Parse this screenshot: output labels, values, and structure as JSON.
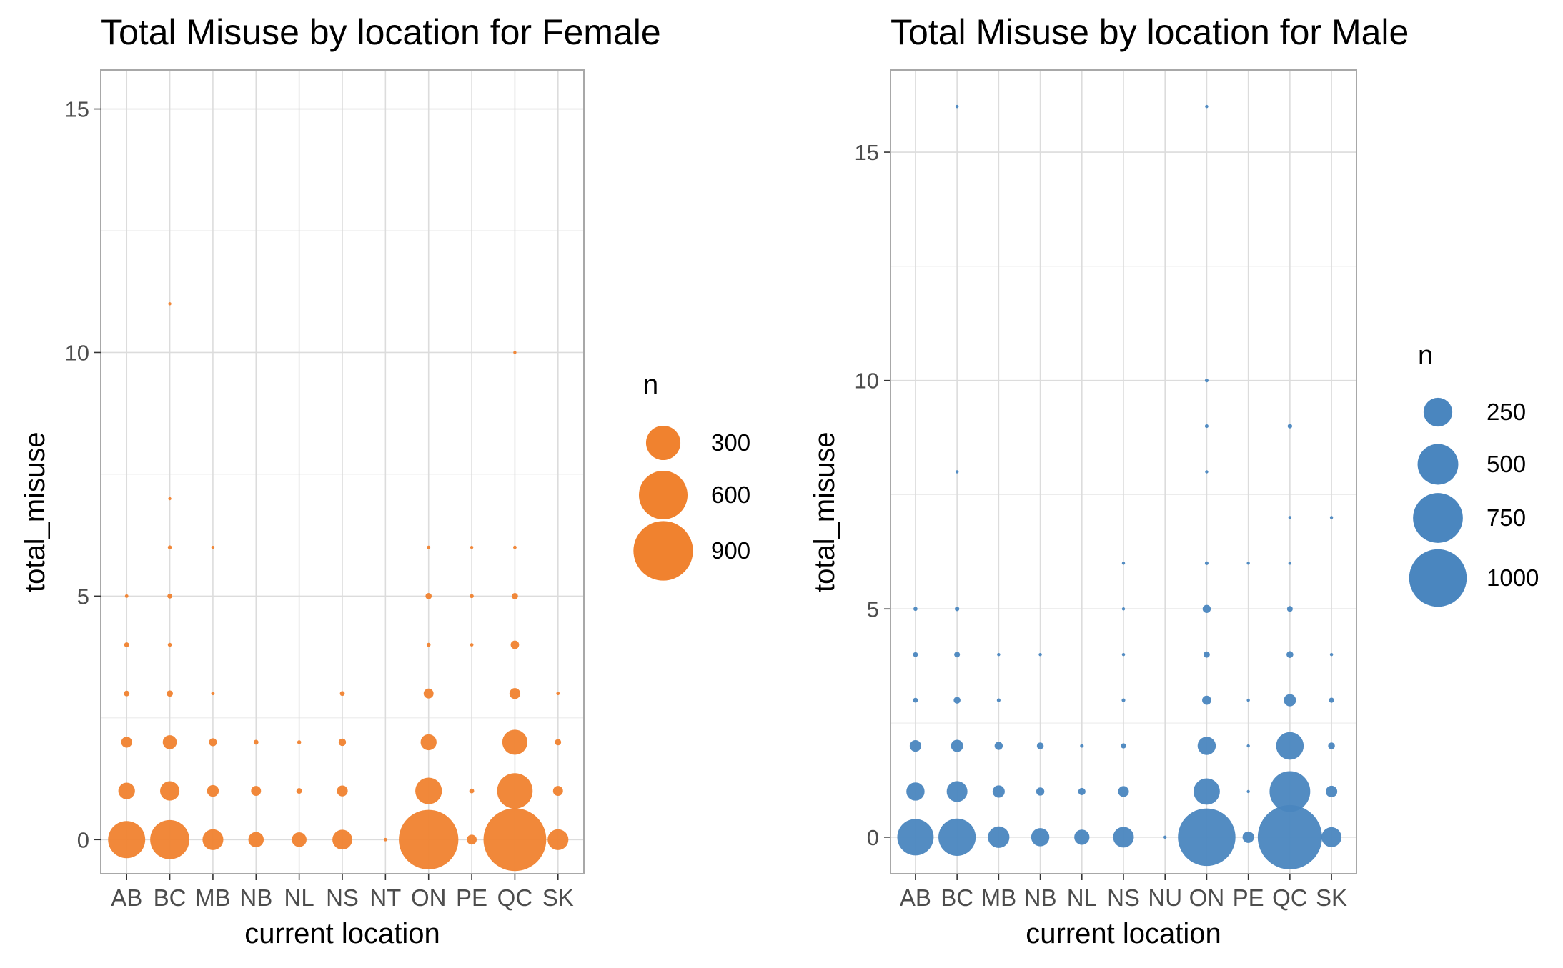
{
  "chart_data": [
    {
      "type": "scatter",
      "title": "Total Misuse by location for Female",
      "xlabel": "current location",
      "ylabel": "total_misuse",
      "categories": [
        "AB",
        "BC",
        "MB",
        "NB",
        "NL",
        "NS",
        "NT",
        "ON",
        "PE",
        "QC",
        "SK"
      ],
      "yticks": [
        0,
        5,
        10,
        15
      ],
      "ylim": [
        -0.7,
        15.8
      ],
      "grid": true,
      "color": "#F0822F",
      "legend": {
        "title": "n",
        "placement": "right",
        "values": [
          300,
          600,
          900
        ],
        "labels": [
          "300",
          "600",
          "900"
        ]
      },
      "size_max": 1050,
      "points": [
        {
          "x": "AB",
          "y": 0,
          "n": 350
        },
        {
          "x": "AB",
          "y": 1,
          "n": 70
        },
        {
          "x": "AB",
          "y": 2,
          "n": 30
        },
        {
          "x": "AB",
          "y": 3,
          "n": 8
        },
        {
          "x": "AB",
          "y": 4,
          "n": 6
        },
        {
          "x": "AB",
          "y": 5,
          "n": 3
        },
        {
          "x": "BC",
          "y": 0,
          "n": 390
        },
        {
          "x": "BC",
          "y": 1,
          "n": 95
        },
        {
          "x": "BC",
          "y": 2,
          "n": 50
        },
        {
          "x": "BC",
          "y": 3,
          "n": 10
        },
        {
          "x": "BC",
          "y": 4,
          "n": 4
        },
        {
          "x": "BC",
          "y": 5,
          "n": 6
        },
        {
          "x": "BC",
          "y": 6,
          "n": 4
        },
        {
          "x": "BC",
          "y": 7,
          "n": 2
        },
        {
          "x": "BC",
          "y": 11,
          "n": 2
        },
        {
          "x": "MB",
          "y": 0,
          "n": 110
        },
        {
          "x": "MB",
          "y": 1,
          "n": 35
        },
        {
          "x": "MB",
          "y": 2,
          "n": 16
        },
        {
          "x": "MB",
          "y": 3,
          "n": 3
        },
        {
          "x": "MB",
          "y": 6,
          "n": 2
        },
        {
          "x": "NB",
          "y": 0,
          "n": 60
        },
        {
          "x": "NB",
          "y": 1,
          "n": 25
        },
        {
          "x": "NB",
          "y": 2,
          "n": 6
        },
        {
          "x": "NL",
          "y": 0,
          "n": 55
        },
        {
          "x": "NL",
          "y": 1,
          "n": 8
        },
        {
          "x": "NL",
          "y": 2,
          "n": 4
        },
        {
          "x": "NS",
          "y": 0,
          "n": 100
        },
        {
          "x": "NS",
          "y": 1,
          "n": 30
        },
        {
          "x": "NS",
          "y": 2,
          "n": 14
        },
        {
          "x": "NS",
          "y": 3,
          "n": 6
        },
        {
          "x": "NT",
          "y": 0,
          "n": 3
        },
        {
          "x": "ON",
          "y": 0,
          "n": 900
        },
        {
          "x": "ON",
          "y": 1,
          "n": 180
        },
        {
          "x": "ON",
          "y": 2,
          "n": 65
        },
        {
          "x": "ON",
          "y": 3,
          "n": 25
        },
        {
          "x": "ON",
          "y": 4,
          "n": 4
        },
        {
          "x": "ON",
          "y": 5,
          "n": 10
        },
        {
          "x": "ON",
          "y": 6,
          "n": 3
        },
        {
          "x": "PE",
          "y": 0,
          "n": 25
        },
        {
          "x": "PE",
          "y": 1,
          "n": 6
        },
        {
          "x": "PE",
          "y": 4,
          "n": 3
        },
        {
          "x": "PE",
          "y": 5,
          "n": 4
        },
        {
          "x": "PE",
          "y": 6,
          "n": 2
        },
        {
          "x": "QC",
          "y": 0,
          "n": 1000
        },
        {
          "x": "QC",
          "y": 1,
          "n": 320
        },
        {
          "x": "QC",
          "y": 2,
          "n": 160
        },
        {
          "x": "QC",
          "y": 3,
          "n": 30
        },
        {
          "x": "QC",
          "y": 4,
          "n": 18
        },
        {
          "x": "QC",
          "y": 5,
          "n": 10
        },
        {
          "x": "QC",
          "y": 6,
          "n": 3
        },
        {
          "x": "QC",
          "y": 10,
          "n": 2
        },
        {
          "x": "SK",
          "y": 0,
          "n": 110
        },
        {
          "x": "SK",
          "y": 1,
          "n": 25
        },
        {
          "x": "SK",
          "y": 2,
          "n": 10
        },
        {
          "x": "SK",
          "y": 3,
          "n": 3
        }
      ]
    },
    {
      "type": "scatter",
      "title": "Total Misuse by location for Male",
      "xlabel": "current location",
      "ylabel": "total_misuse",
      "categories": [
        "AB",
        "BC",
        "MB",
        "NB",
        "NL",
        "NS",
        "NU",
        "ON",
        "PE",
        "QC",
        "SK"
      ],
      "yticks": [
        0,
        5,
        10,
        15
      ],
      "ylim": [
        -0.8,
        16.8
      ],
      "grid": true,
      "color": "#4A86BF",
      "legend": {
        "title": "n",
        "placement": "right",
        "values": [
          250,
          500,
          750,
          1000
        ],
        "labels": [
          "250",
          "500",
          "750",
          "1000"
        ]
      },
      "size_max": 1250,
      "points": [
        {
          "x": "AB",
          "y": 0,
          "n": 400
        },
        {
          "x": "AB",
          "y": 1,
          "n": 100
        },
        {
          "x": "AB",
          "y": 2,
          "n": 40
        },
        {
          "x": "AB",
          "y": 3,
          "n": 7
        },
        {
          "x": "AB",
          "y": 4,
          "n": 7
        },
        {
          "x": "AB",
          "y": 5,
          "n": 5
        },
        {
          "x": "BC",
          "y": 0,
          "n": 420
        },
        {
          "x": "BC",
          "y": 1,
          "n": 130
        },
        {
          "x": "BC",
          "y": 2,
          "n": 45
        },
        {
          "x": "BC",
          "y": 3,
          "n": 14
        },
        {
          "x": "BC",
          "y": 4,
          "n": 10
        },
        {
          "x": "BC",
          "y": 5,
          "n": 6
        },
        {
          "x": "BC",
          "y": 8,
          "n": 3
        },
        {
          "x": "BC",
          "y": 16,
          "n": 2
        },
        {
          "x": "MB",
          "y": 0,
          "n": 140
        },
        {
          "x": "MB",
          "y": 1,
          "n": 45
        },
        {
          "x": "MB",
          "y": 2,
          "n": 20
        },
        {
          "x": "MB",
          "y": 3,
          "n": 4
        },
        {
          "x": "MB",
          "y": 4,
          "n": 3
        },
        {
          "x": "NB",
          "y": 0,
          "n": 100
        },
        {
          "x": "NB",
          "y": 1,
          "n": 20
        },
        {
          "x": "NB",
          "y": 2,
          "n": 14
        },
        {
          "x": "NB",
          "y": 4,
          "n": 2
        },
        {
          "x": "NL",
          "y": 0,
          "n": 70
        },
        {
          "x": "NL",
          "y": 1,
          "n": 16
        },
        {
          "x": "NL",
          "y": 2,
          "n": 4
        },
        {
          "x": "NS",
          "y": 0,
          "n": 130
        },
        {
          "x": "NS",
          "y": 1,
          "n": 35
        },
        {
          "x": "NS",
          "y": 2,
          "n": 8
        },
        {
          "x": "NS",
          "y": 3,
          "n": 4
        },
        {
          "x": "NS",
          "y": 4,
          "n": 3
        },
        {
          "x": "NS",
          "y": 5,
          "n": 3
        },
        {
          "x": "NS",
          "y": 6,
          "n": 3
        },
        {
          "x": "NU",
          "y": 0,
          "n": 3
        },
        {
          "x": "ON",
          "y": 0,
          "n": 1000
        },
        {
          "x": "ON",
          "y": 1,
          "n": 210
        },
        {
          "x": "ON",
          "y": 2,
          "n": 100
        },
        {
          "x": "ON",
          "y": 3,
          "n": 25
        },
        {
          "x": "ON",
          "y": 4,
          "n": 12
        },
        {
          "x": "ON",
          "y": 5,
          "n": 20
        },
        {
          "x": "ON",
          "y": 6,
          "n": 4
        },
        {
          "x": "ON",
          "y": 8,
          "n": 3
        },
        {
          "x": "ON",
          "y": 9,
          "n": 4
        },
        {
          "x": "ON",
          "y": 10,
          "n": 4
        },
        {
          "x": "ON",
          "y": 16,
          "n": 3
        },
        {
          "x": "PE",
          "y": 0,
          "n": 40
        },
        {
          "x": "PE",
          "y": 1,
          "n": 3
        },
        {
          "x": "PE",
          "y": 2,
          "n": 3
        },
        {
          "x": "PE",
          "y": 3,
          "n": 2
        },
        {
          "x": "PE",
          "y": 6,
          "n": 2
        },
        {
          "x": "QC",
          "y": 0,
          "n": 1250
        },
        {
          "x": "QC",
          "y": 1,
          "n": 500
        },
        {
          "x": "QC",
          "y": 2,
          "n": 230
        },
        {
          "x": "QC",
          "y": 3,
          "n": 45
        },
        {
          "x": "QC",
          "y": 4,
          "n": 14
        },
        {
          "x": "QC",
          "y": 5,
          "n": 10
        },
        {
          "x": "QC",
          "y": 6,
          "n": 3
        },
        {
          "x": "QC",
          "y": 7,
          "n": 2
        },
        {
          "x": "QC",
          "y": 9,
          "n": 6
        },
        {
          "x": "SK",
          "y": 0,
          "n": 120
        },
        {
          "x": "SK",
          "y": 1,
          "n": 40
        },
        {
          "x": "SK",
          "y": 2,
          "n": 14
        },
        {
          "x": "SK",
          "y": 3,
          "n": 8
        },
        {
          "x": "SK",
          "y": 4,
          "n": 3
        },
        {
          "x": "SK",
          "y": 7,
          "n": 3
        }
      ]
    }
  ]
}
